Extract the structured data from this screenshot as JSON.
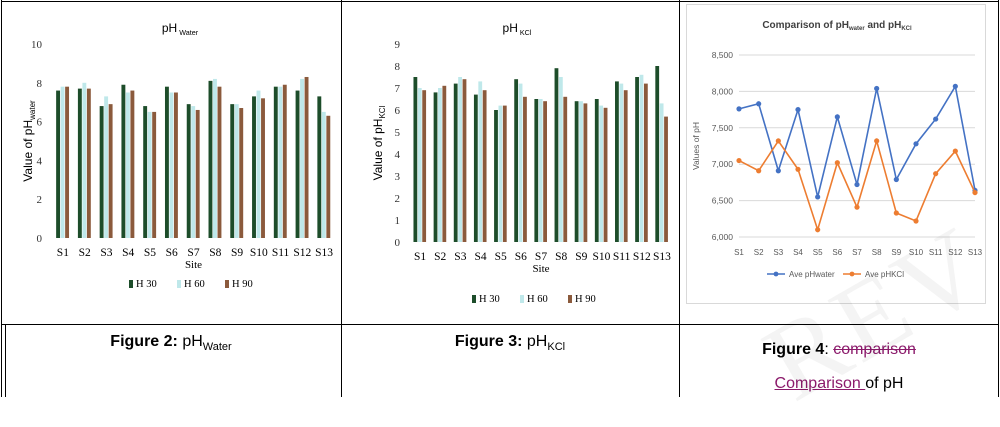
{
  "chart_data": [
    {
      "type": "bar",
      "title": "pH",
      "title_sub": "Water",
      "xlabel": "Site",
      "ylabel": "Value of pH",
      "ylabel_sub": "water",
      "ylim": [
        0,
        10
      ],
      "yticks": [
        "0",
        "2",
        "4",
        "6",
        "8",
        "10"
      ],
      "categories": [
        "S1",
        "S2",
        "S3",
        "S4",
        "S5",
        "S6",
        "S7",
        "S8",
        "S9",
        "S10",
        "S11",
        "S12",
        "S13"
      ],
      "series": [
        {
          "name": "H 30",
          "color": "#1d4d2a",
          "values": [
            7.6,
            7.7,
            6.8,
            7.9,
            6.8,
            7.8,
            6.9,
            8.1,
            6.9,
            7.3,
            7.8,
            7.6,
            7.3
          ]
        },
        {
          "name": "H 60",
          "color": "#bfe8ea",
          "values": [
            7.8,
            8.0,
            7.3,
            7.5,
            6.5,
            7.5,
            6.8,
            8.2,
            6.9,
            7.6,
            7.8,
            8.2,
            6.5
          ]
        },
        {
          "name": "H 90",
          "color": "#8b5a3c",
          "values": [
            7.8,
            7.7,
            6.9,
            7.6,
            6.5,
            7.5,
            6.6,
            7.8,
            6.7,
            7.2,
            7.9,
            8.3,
            6.3
          ]
        }
      ],
      "legend_position": "bottom"
    },
    {
      "type": "bar",
      "title": "pH",
      "title_sub": "KCl",
      "xlabel": "Site",
      "ylabel": "Value of pH",
      "ylabel_sub": "KCl",
      "ylim": [
        0,
        9
      ],
      "yticks": [
        "0",
        "1",
        "2",
        "3",
        "4",
        "5",
        "6",
        "7",
        "8",
        "9"
      ],
      "categories": [
        "S1",
        "S2",
        "S3",
        "S4",
        "S5",
        "S6",
        "S7",
        "S8",
        "S9",
        "S10",
        "S11",
        "S12",
        "S13"
      ],
      "series": [
        {
          "name": "H 30",
          "color": "#1d4d2a",
          "values": [
            7.5,
            6.8,
            7.2,
            6.7,
            6.0,
            7.4,
            6.5,
            7.9,
            6.4,
            6.5,
            7.3,
            7.5,
            8.0
          ]
        },
        {
          "name": "H 60",
          "color": "#bfe8ea",
          "values": [
            7.0,
            7.0,
            7.5,
            7.3,
            6.2,
            7.2,
            6.5,
            7.5,
            6.4,
            6.2,
            7.2,
            7.6,
            6.3
          ]
        },
        {
          "name": "H 90",
          "color": "#8b5a3c",
          "values": [
            6.9,
            7.1,
            7.4,
            6.9,
            6.2,
            6.6,
            6.4,
            6.6,
            6.3,
            6.1,
            6.9,
            7.2,
            5.7
          ]
        }
      ],
      "legend_position": "bottom"
    },
    {
      "type": "line",
      "title_parts": [
        "Comparison of pH",
        "water",
        " and  pH",
        "KCl"
      ],
      "ylabel": "Values of pH",
      "ylim": [
        6.0,
        8.5
      ],
      "yticks": [
        "6,000",
        "6,500",
        "7,000",
        "7,500",
        "8,000",
        "8,500"
      ],
      "categories": [
        "S1",
        "S2",
        "S3",
        "S4",
        "S5",
        "S6",
        "S7",
        "S8",
        "S9",
        "S10",
        "S11",
        "S12",
        "S13"
      ],
      "series": [
        {
          "name": "Ave pHwater",
          "color": "#4472c4",
          "values": [
            7.76,
            7.83,
            6.91,
            7.75,
            6.55,
            7.65,
            6.72,
            8.04,
            6.79,
            7.28,
            7.62,
            8.07,
            6.64
          ]
        },
        {
          "name": "Ave pHKCl",
          "color": "#ed7d31",
          "values": [
            7.05,
            6.91,
            7.32,
            6.93,
            6.1,
            7.02,
            6.41,
            7.32,
            6.33,
            6.22,
            6.87,
            7.18,
            6.61
          ]
        }
      ],
      "grid": true,
      "legend_position": "bottom"
    }
  ],
  "captions": {
    "fig2_label": "Figure 2:",
    "fig2_text": "pH",
    "fig2_sub": "Water",
    "fig3_label": "Figure 3:",
    "fig3_text": "pH",
    "fig3_sub": "KCl",
    "fig4_label": "Figure 4",
    "fig4_colon": ": ",
    "fig4_deleted": "comparison",
    "fig4_inserted": "Comparison ",
    "fig4_rest": "of pH"
  }
}
